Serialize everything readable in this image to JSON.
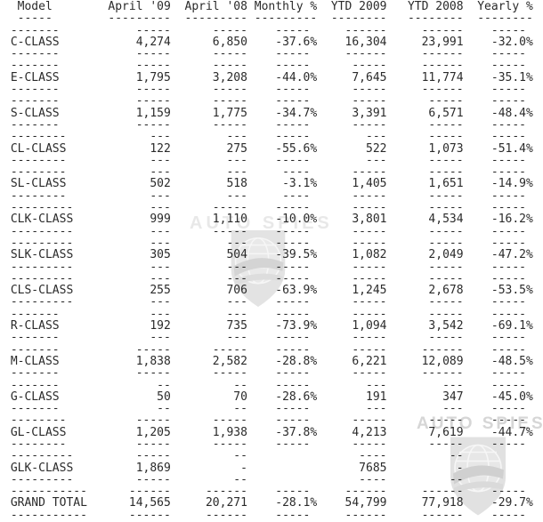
{
  "page": {
    "background": "#ffffff",
    "text_color": "#2a2a2a"
  },
  "watermark": {
    "text": "AUTO SPIES",
    "color": "#c8c8c8"
  },
  "chart_data": {
    "type": "table",
    "columns": [
      "Model",
      "April '09",
      "April '08",
      "Monthly %",
      "YTD 2009",
      "YTD 2008",
      "Yearly %"
    ],
    "rows": [
      {
        "model": "C-CLASS",
        "values": [
          "4,274",
          "6,850",
          "-37.6%",
          "16,304",
          "23,991",
          "-32.0%"
        ]
      },
      {
        "model": "E-CLASS",
        "values": [
          "1,795",
          "3,208",
          "-44.0%",
          "7,645",
          "11,774",
          "-35.1%"
        ]
      },
      {
        "model": "S-CLASS",
        "values": [
          "1,159",
          "1,775",
          "-34.7%",
          "3,391",
          "6,571",
          "-48.4%"
        ]
      },
      {
        "model": "CL-CLASS",
        "values": [
          "122",
          "275",
          "-55.6%",
          "522",
          "1,073",
          "-51.4%"
        ]
      },
      {
        "model": "SL-CLASS",
        "values": [
          "502",
          "518",
          "-3.1%",
          "1,405",
          "1,651",
          "-14.9%"
        ]
      },
      {
        "model": "CLK-CLASS",
        "values": [
          "999",
          "1,110",
          "-10.0%",
          "3,801",
          "4,534",
          "-16.2%"
        ]
      },
      {
        "model": "SLK-CLASS",
        "values": [
          "305",
          "504",
          "-39.5%",
          "1,082",
          "2,049",
          "-47.2%"
        ]
      },
      {
        "model": "CLS-CLASS",
        "values": [
          "255",
          "706",
          "-63.9%",
          "1,245",
          "2,678",
          "-53.5%"
        ]
      },
      {
        "model": "R-CLASS",
        "values": [
          "192",
          "735",
          "-73.9%",
          "1,094",
          "3,542",
          "-69.1%"
        ]
      },
      {
        "model": "M-CLASS",
        "values": [
          "1,838",
          "2,582",
          "-28.8%",
          "6,221",
          "12,089",
          "-48.5%"
        ]
      },
      {
        "model": "G-CLASS",
        "values": [
          "50",
          "70",
          "-28.6%",
          "191",
          "347",
          "-45.0%"
        ]
      },
      {
        "model": "GL-CLASS",
        "values": [
          "1,205",
          "1,938",
          "-37.8%",
          "4,213",
          "7,619",
          "-44.7%"
        ]
      },
      {
        "model": "GLK-CLASS",
        "values": [
          "1,869",
          "-",
          "",
          "7685",
          "-",
          ""
        ]
      },
      {
        "model": "GRAND TOTAL",
        "values": [
          "14,565",
          "20,271",
          "-28.1%",
          "54,799",
          "77,918",
          "-29.7%"
        ]
      }
    ]
  }
}
